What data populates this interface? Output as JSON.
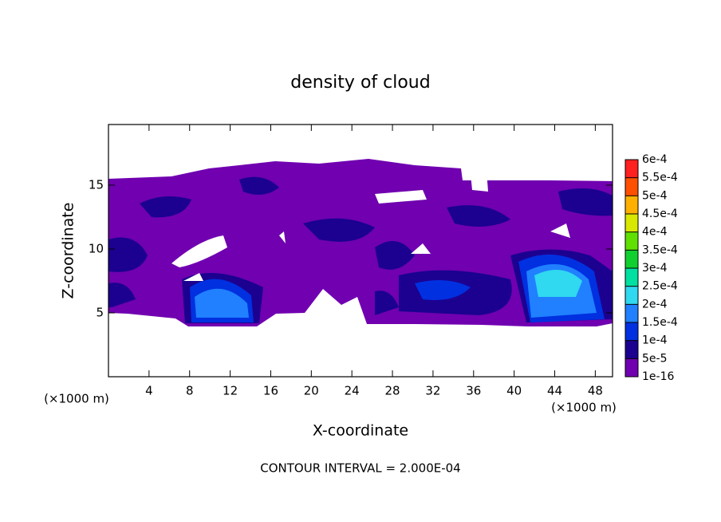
{
  "chart_data": {
    "type": "contour",
    "title": "density of cloud",
    "x_label": "X-coordinate",
    "y_label": "Z-coordinate",
    "x_unit": "(×1000 m)",
    "y_unit": "(×1000 m)",
    "xlim": [
      0,
      49.7
    ],
    "ylim": [
      0,
      19.75
    ],
    "xticks": [
      4,
      8,
      12,
      16,
      20,
      24,
      28,
      32,
      36,
      40,
      44,
      48
    ],
    "yticks": [
      5,
      10,
      15
    ],
    "footer": "CONTOUR INTERVAL = 2.000E-04",
    "colorbar": {
      "levels": [
        {
          "value": 1e-16,
          "label": "1e-16"
        },
        {
          "value": 5e-05,
          "label": "5e-5"
        },
        {
          "value": 0.0001,
          "label": "1e-4"
        },
        {
          "value": 0.00015,
          "label": "1.5e-4"
        },
        {
          "value": 0.0002,
          "label": "2e-4"
        },
        {
          "value": 0.00025,
          "label": "2.5e-4"
        },
        {
          "value": 0.0003,
          "label": "3e-4"
        },
        {
          "value": 0.00035,
          "label": "3.5e-4"
        },
        {
          "value": 0.0004,
          "label": "4e-4"
        },
        {
          "value": 0.00045,
          "label": "4.5e-4"
        },
        {
          "value": 0.0005,
          "label": "5e-4"
        },
        {
          "value": 0.00055,
          "label": "5.5e-4"
        },
        {
          "value": 0.0006,
          "label": "6e-4"
        }
      ],
      "colors": [
        "#7000b0",
        "#1c0090",
        "#0030e0",
        "#2080ff",
        "#30d8f0",
        "#00e0a0",
        "#10d030",
        "#60e000",
        "#d8e800",
        "#ffb000",
        "#ff5000",
        "#ff2020"
      ]
    }
  }
}
